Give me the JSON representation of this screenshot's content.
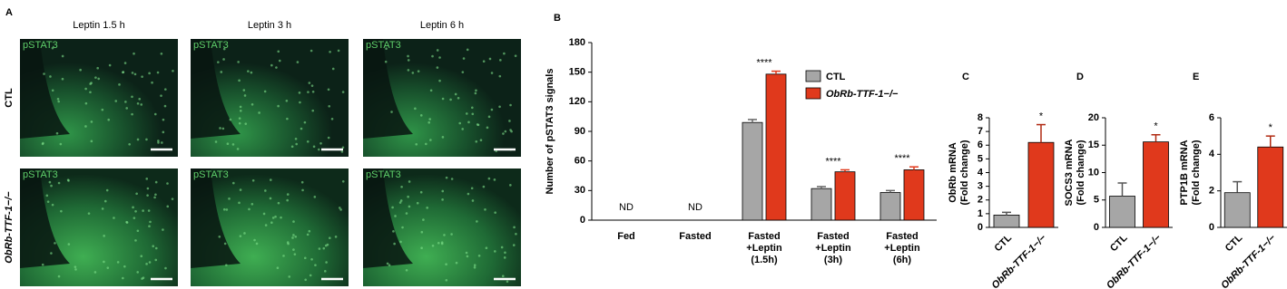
{
  "panel_a": {
    "label": "A",
    "columns": [
      "Leptin 1.5 h",
      "Leptin 3 h",
      "Leptin 6 h"
    ],
    "rows": [
      "CTL",
      "ObRb-TTF-1−/−"
    ],
    "stain": "pSTAT3"
  },
  "chart_data": [
    {
      "type": "bar",
      "panel_label": "B",
      "ylabel": [
        "Number of pSTAT3 signals"
      ],
      "categories": [
        "Fed",
        "Fasted",
        "Fasted +Leptin (1.5h)",
        "Fasted +Leptin (3h)",
        "Fasted +Leptin (6h)"
      ],
      "series": [
        {
          "name": "CTL",
          "color": "#a6a6a6",
          "values": [
            null,
            null,
            99,
            32,
            28
          ],
          "errors": [
            null,
            null,
            3,
            2,
            2
          ]
        },
        {
          "name": "ObRb-TTF-1−/−",
          "color": "#e0391c",
          "values": [
            null,
            null,
            148,
            49,
            51
          ],
          "errors": [
            null,
            null,
            3,
            2,
            3
          ]
        }
      ],
      "annotations": [
        "ND",
        "ND",
        "****",
        "****",
        "****"
      ],
      "ylim": [
        0,
        180
      ],
      "yticks": [
        0,
        30,
        60,
        90,
        120,
        150,
        180
      ]
    },
    {
      "type": "bar",
      "panel_label": "C",
      "ylabel": [
        "ObRb mRNA",
        "(Fold change)"
      ],
      "categories": [
        "CTL",
        "ObRb-TTF-1−/−"
      ],
      "colors": [
        "#a6a6a6",
        "#e0391c"
      ],
      "values": [
        0.9,
        6.2
      ],
      "errors": [
        0.2,
        1.3
      ],
      "annotations": [
        null,
        "*"
      ],
      "ylim": [
        0,
        8
      ],
      "yticks": [
        0,
        1,
        2,
        3,
        4,
        5,
        6,
        7,
        8
      ]
    },
    {
      "type": "bar",
      "panel_label": "D",
      "ylabel": [
        "SOCS3 mRNA",
        "(Fold change)"
      ],
      "categories": [
        "CTL",
        "ObRb-TTF-1−/−"
      ],
      "colors": [
        "#a6a6a6",
        "#e0391c"
      ],
      "values": [
        5.7,
        15.6
      ],
      "errors": [
        2.4,
        1.3
      ],
      "annotations": [
        null,
        "*"
      ],
      "ylim": [
        0,
        20
      ],
      "yticks": [
        0,
        5,
        10,
        15,
        20
      ]
    },
    {
      "type": "bar",
      "panel_label": "E",
      "ylabel": [
        "PTP1B mRNA",
        "(Fold change)"
      ],
      "categories": [
        "CTL",
        "ObRb-TTF-1−/−"
      ],
      "colors": [
        "#a6a6a6",
        "#e0391c"
      ],
      "values": [
        1.9,
        4.4
      ],
      "errors": [
        0.6,
        0.6
      ],
      "annotations": [
        null,
        "*"
      ],
      "ylim": [
        0,
        6
      ],
      "yticks": [
        0,
        2,
        4,
        6
      ]
    }
  ]
}
